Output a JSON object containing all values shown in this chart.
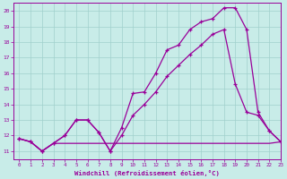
{
  "xlabel": "Windchill (Refroidissement éolien,°C)",
  "background_color": "#c8ece8",
  "grid_color": "#a0d0cc",
  "line_color": "#990099",
  "xlim": [
    -0.5,
    23
  ],
  "ylim": [
    10.5,
    20.5
  ],
  "ytick_vals": [
    11,
    12,
    13,
    14,
    15,
    16,
    17,
    18,
    19,
    20
  ],
  "xtick_vals": [
    0,
    1,
    2,
    3,
    4,
    5,
    6,
    7,
    8,
    9,
    10,
    11,
    12,
    13,
    14,
    15,
    16,
    17,
    18,
    19,
    20,
    21,
    22,
    23
  ],
  "line1_x": [
    0,
    1,
    2,
    3,
    4,
    5,
    6,
    7,
    8,
    9,
    10,
    11,
    12,
    13,
    14,
    15,
    16,
    17,
    18,
    19,
    20,
    21,
    22,
    23
  ],
  "line1_y": [
    11.8,
    11.6,
    11.0,
    11.5,
    12.0,
    13.0,
    13.0,
    12.2,
    11.0,
    12.5,
    14.7,
    14.8,
    16.0,
    17.5,
    17.8,
    18.8,
    19.3,
    19.5,
    20.2,
    20.2,
    18.8,
    13.5,
    12.3,
    11.6
  ],
  "line2_x": [
    0,
    1,
    2,
    3,
    4,
    5,
    6,
    7,
    8,
    9,
    10,
    11,
    12,
    13,
    14,
    15,
    16,
    17,
    18,
    19,
    20,
    21,
    22,
    23
  ],
  "line2_y": [
    11.8,
    11.6,
    11.0,
    11.5,
    11.5,
    11.5,
    11.5,
    11.5,
    11.5,
    11.5,
    11.5,
    11.5,
    11.5,
    11.5,
    11.5,
    11.5,
    11.5,
    11.5,
    11.5,
    11.5,
    11.5,
    11.5,
    11.5,
    11.6
  ],
  "line3_x": [
    0,
    1,
    2,
    3,
    4,
    5,
    6,
    7,
    8,
    9,
    10,
    11,
    12,
    13,
    14,
    15,
    16,
    17,
    18,
    19,
    20,
    21,
    22,
    23
  ],
  "line3_y": [
    11.8,
    11.6,
    11.0,
    11.5,
    12.0,
    13.0,
    13.0,
    12.2,
    11.0,
    12.0,
    13.3,
    14.0,
    14.8,
    15.8,
    16.5,
    17.2,
    17.8,
    18.5,
    18.8,
    15.3,
    13.5,
    13.3,
    12.3,
    11.6
  ]
}
